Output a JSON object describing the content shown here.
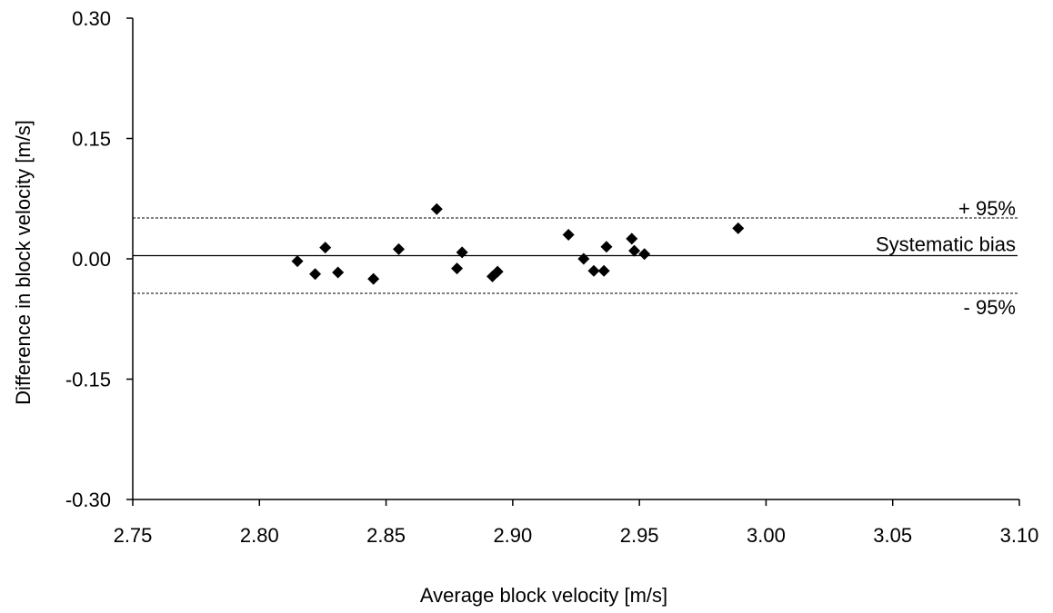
{
  "chart_data": {
    "type": "scatter",
    "title": "",
    "xlabel": "Average block velocity [m/s]",
    "ylabel": "Difference in block velocity [m/s]",
    "xlim": [
      2.75,
      3.1
    ],
    "ylim": [
      -0.3,
      0.3
    ],
    "x_ticks": [
      "2.75",
      "2.80",
      "2.85",
      "2.90",
      "2.95",
      "3.00",
      "3.05",
      "3.10"
    ],
    "y_ticks": [
      "0.30",
      "0.15",
      "0.00",
      "-0.15",
      "-0.30"
    ],
    "grid": false,
    "marker": "diamond",
    "marker_color": "#000000",
    "points": [
      {
        "x": 2.815,
        "y": -0.003
      },
      {
        "x": 2.822,
        "y": -0.019
      },
      {
        "x": 2.826,
        "y": 0.014
      },
      {
        "x": 2.831,
        "y": -0.017
      },
      {
        "x": 2.845,
        "y": -0.025
      },
      {
        "x": 2.855,
        "y": 0.012
      },
      {
        "x": 2.87,
        "y": 0.062
      },
      {
        "x": 2.878,
        "y": -0.012
      },
      {
        "x": 2.88,
        "y": 0.008
      },
      {
        "x": 2.892,
        "y": -0.022
      },
      {
        "x": 2.894,
        "y": -0.016
      },
      {
        "x": 2.922,
        "y": 0.03
      },
      {
        "x": 2.928,
        "y": 0.0
      },
      {
        "x": 2.932,
        "y": -0.015
      },
      {
        "x": 2.936,
        "y": -0.015
      },
      {
        "x": 2.937,
        "y": 0.015
      },
      {
        "x": 2.947,
        "y": 0.025
      },
      {
        "x": 2.948,
        "y": 0.01
      },
      {
        "x": 2.952,
        "y": 0.006
      },
      {
        "x": 2.989,
        "y": 0.038
      }
    ],
    "reference_lines": [
      {
        "label": "+ 95%",
        "y": 0.051,
        "style": "dashed"
      },
      {
        "label": "Systematic bias",
        "y": 0.004,
        "style": "solid"
      },
      {
        "label": "- 95%",
        "y": -0.043,
        "style": "dashed"
      }
    ]
  }
}
